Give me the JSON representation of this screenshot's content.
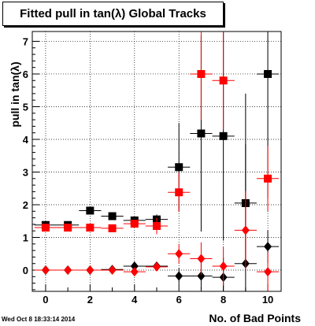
{
  "header": {
    "title": "Fitted pull in tan(λ)  Global Tracks",
    "datestamp": "Wed Oct  8 18:33:14 2014"
  },
  "chart_data": {
    "type": "scatter",
    "title": "Fitted pull in tan(λ)  Global Tracks",
    "xlabel": "No. of Bad Points",
    "ylabel": "pull in tan(λ)",
    "xlim": [
      -0.6,
      10.6
    ],
    "ylim": [
      -0.65,
      7.3
    ],
    "xticks": [
      0,
      2,
      4,
      6,
      8,
      10
    ],
    "yticks": [
      0,
      1,
      2,
      3,
      4,
      5,
      6,
      7
    ],
    "grid": true,
    "series": [
      {
        "marker": "square",
        "color": "#000000",
        "x": [
          0,
          1,
          2,
          3,
          4,
          5,
          6,
          7,
          8,
          9,
          10
        ],
        "y": [
          1.38,
          1.38,
          1.82,
          1.65,
          1.52,
          1.55,
          3.15,
          4.18,
          4.1,
          2.05,
          6.0
        ],
        "xerr": [
          0.5,
          0.5,
          0.5,
          0.5,
          0.5,
          0.5,
          0.5,
          0.5,
          0.5,
          0.5,
          0.5
        ],
        "yerr": [
          0.05,
          0.05,
          0.06,
          0.07,
          0.1,
          0.15,
          1.35,
          3.0,
          3.2,
          1.8,
          3.8
        ]
      },
      {
        "marker": "square",
        "color": "#ff0000",
        "x": [
          0,
          1,
          2,
          3,
          4,
          5,
          6,
          7,
          8,
          9,
          10
        ],
        "y": [
          1.3,
          1.3,
          1.3,
          1.28,
          1.42,
          1.35,
          2.38,
          6.0,
          5.8,
          null,
          2.8
        ],
        "xerr": [
          0.5,
          0.5,
          0.5,
          0.5,
          0.5,
          0.5,
          0.5,
          0.5,
          0.5,
          0.5,
          0.5
        ],
        "yerr": [
          0.05,
          0.05,
          0.05,
          0.06,
          0.1,
          0.25,
          0.6,
          1.4,
          1.5,
          0,
          1.0
        ]
      },
      {
        "marker": "diamond",
        "color": "#000000",
        "x": [
          0,
          1,
          2,
          3,
          4,
          5,
          6,
          7,
          8,
          9,
          10
        ],
        "y": [
          0.0,
          0.0,
          0.0,
          0.02,
          0.12,
          0.12,
          -0.18,
          -0.18,
          -0.22,
          0.2,
          0.72
        ],
        "xerr": [
          0.5,
          0.5,
          0.5,
          0.5,
          0.5,
          0.5,
          0.5,
          0.5,
          0.5,
          0.5,
          0.5
        ],
        "yerr": [
          0.02,
          0.02,
          0.03,
          0.04,
          0.08,
          0.12,
          0.25,
          0.4,
          0.6,
          5.2,
          0.5
        ]
      },
      {
        "marker": "diamond",
        "color": "#ff0000",
        "x": [
          0,
          1,
          2,
          3,
          4,
          5,
          6,
          7,
          8,
          9,
          10
        ],
        "y": [
          0.0,
          0.0,
          0.0,
          0.0,
          -0.05,
          0.1,
          0.5,
          0.35,
          0.12,
          1.22,
          -0.05
        ],
        "xerr": [
          0.5,
          0.5,
          0.5,
          0.5,
          0.5,
          0.5,
          0.5,
          0.5,
          0.5,
          0.5,
          0.5
        ],
        "yerr": [
          0.02,
          0.02,
          0.03,
          0.03,
          0.05,
          0.1,
          0.3,
          0.5,
          0.6,
          1.2,
          0.6
        ]
      }
    ]
  }
}
